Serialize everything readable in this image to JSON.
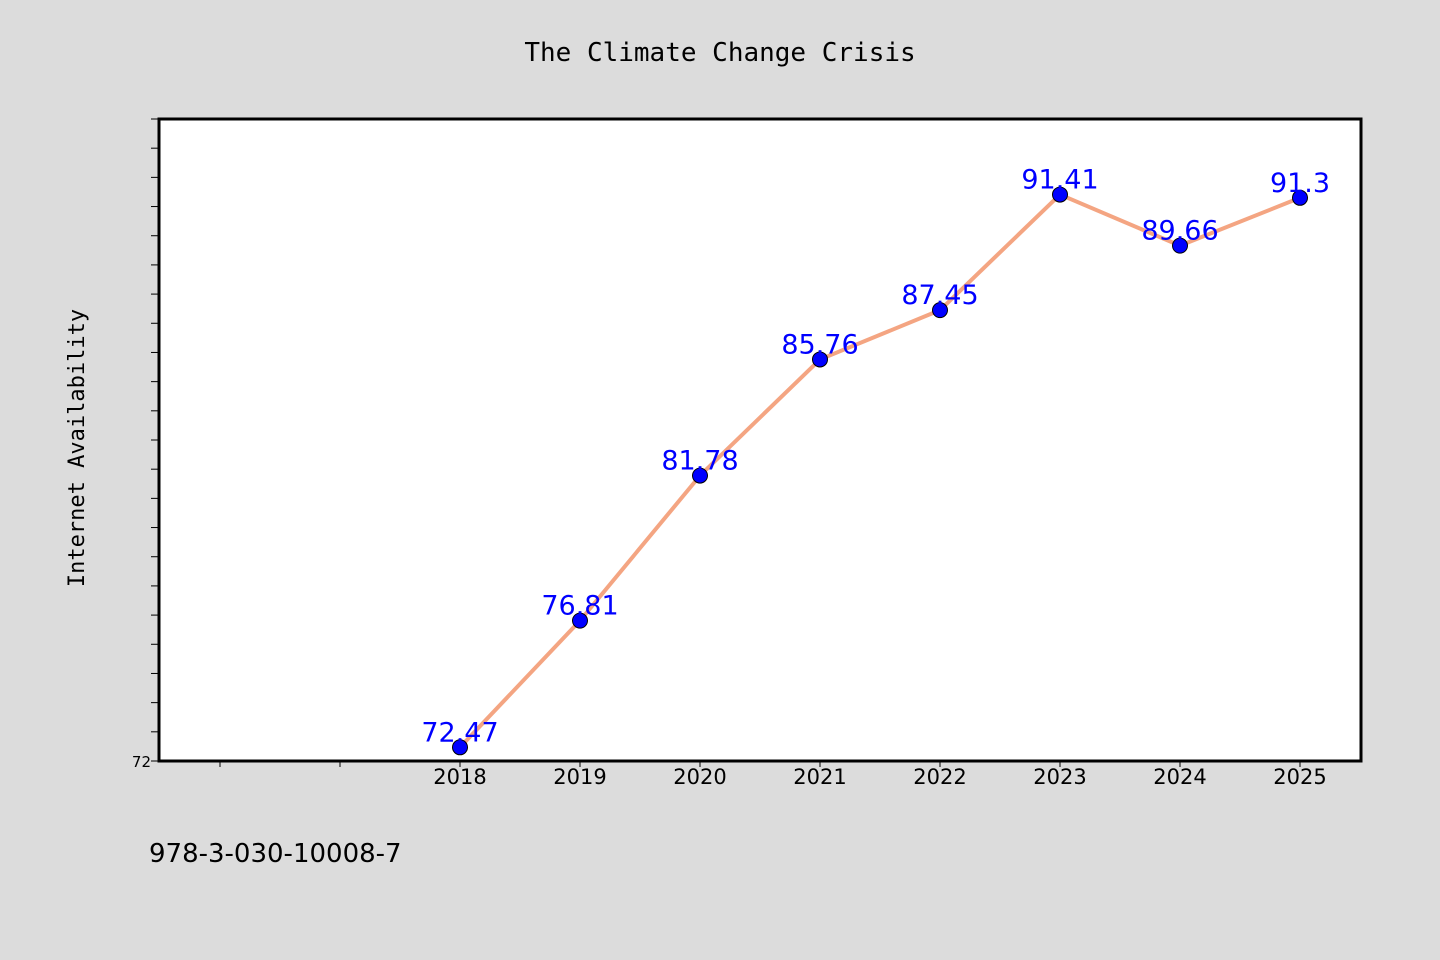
{
  "chart_data": {
    "type": "line",
    "title": "The Climate Change Crisis",
    "xlabel": "",
    "ylabel": "Internet Availability",
    "x": [
      "2018",
      "2019",
      "2020",
      "2021",
      "2022",
      "2023",
      "2024",
      "2025"
    ],
    "series": [
      {
        "values": [
          72.47,
          76.81,
          81.78,
          85.76,
          87.45,
          91.41,
          89.66,
          91.3
        ],
        "data_labels": [
          "72.47",
          "76.81",
          "81.78",
          "85.76",
          "87.45",
          "91.41",
          "89.66",
          "91.3"
        ],
        "line_color": "#f4a582",
        "marker_color": "#0000ff",
        "label_color": "#0000ff"
      }
    ],
    "y_tick_labels": [
      "72"
    ],
    "ylim": [
      72,
      94
    ],
    "grid": false,
    "legend": "none"
  },
  "footer_text": "978-3-030-10008-7",
  "colors": {
    "background": "#dcdcdc",
    "plot_background": "#ffffff",
    "axis": "#000000"
  }
}
